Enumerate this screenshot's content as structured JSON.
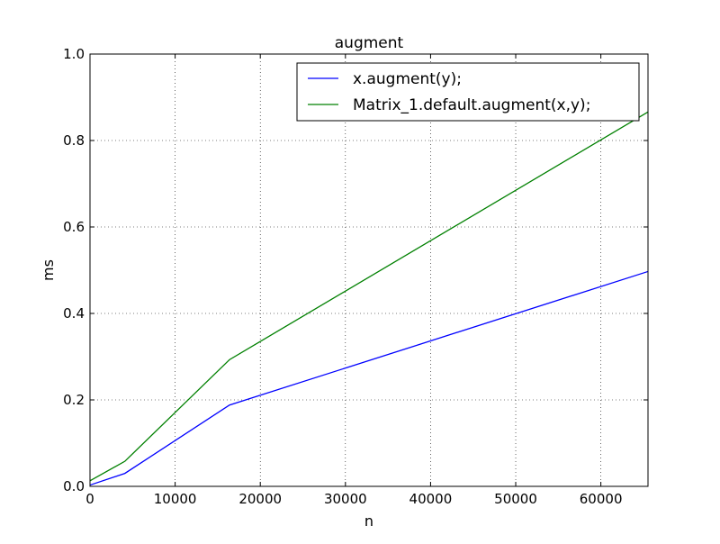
{
  "chart_data": {
    "type": "line",
    "title": "augment",
    "xlabel": "n",
    "ylabel": "ms",
    "xlim": [
      0,
      65536
    ],
    "ylim": [
      0.0,
      1.0
    ],
    "xticks": [
      0,
      10000,
      20000,
      30000,
      40000,
      50000,
      60000
    ],
    "xtick_labels": [
      "0",
      "10000",
      "20000",
      "30000",
      "40000",
      "50000",
      "60000"
    ],
    "yticks": [
      0.0,
      0.2,
      0.4,
      0.6,
      0.8,
      1.0
    ],
    "ytick_labels": [
      "0.0",
      "0.2",
      "0.4",
      "0.6",
      "0.8",
      "1.0"
    ],
    "grid": true,
    "legend_position": "top-right",
    "x": [
      0,
      4096,
      16384,
      65536
    ],
    "series": [
      {
        "name": "x.augment(y);",
        "color": "#0000ff",
        "values": [
          0.003,
          0.03,
          0.188,
          0.497
        ]
      },
      {
        "name": "Matrix_1.default.augment(x,y);",
        "color": "#008000",
        "values": [
          0.013,
          0.058,
          0.293,
          0.866
        ]
      }
    ]
  }
}
